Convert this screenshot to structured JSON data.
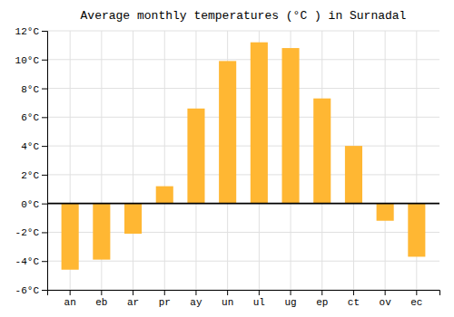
{
  "chart_data": {
    "type": "bar",
    "title": "Average monthly temperatures (°C ) in Surnadal",
    "categories": [
      "an",
      "eb",
      "ar",
      "pr",
      "ay",
      "un",
      "ul",
      "ug",
      "ep",
      "ct",
      "ov",
      "ec"
    ],
    "values": [
      -4.6,
      -3.9,
      -2.1,
      1.2,
      6.6,
      9.9,
      11.2,
      10.8,
      7.3,
      4.0,
      -1.2,
      -3.7
    ],
    "color": "#FFB733",
    "ylim": [
      -6,
      12
    ],
    "yticks": [
      {
        "value": -6,
        "label": "-6°C"
      },
      {
        "value": -4,
        "label": "-4°C"
      },
      {
        "value": -2,
        "label": "-2°C"
      },
      {
        "value": 0,
        "label": "0°C"
      },
      {
        "value": 2,
        "label": "2°C"
      },
      {
        "value": 4,
        "label": "4°C"
      },
      {
        "value": 6,
        "label": "6°C"
      },
      {
        "value": 8,
        "label": "8°C"
      },
      {
        "value": 10,
        "label": "10°C"
      },
      {
        "value": 12,
        "label": "12°C"
      }
    ],
    "grid": true
  }
}
